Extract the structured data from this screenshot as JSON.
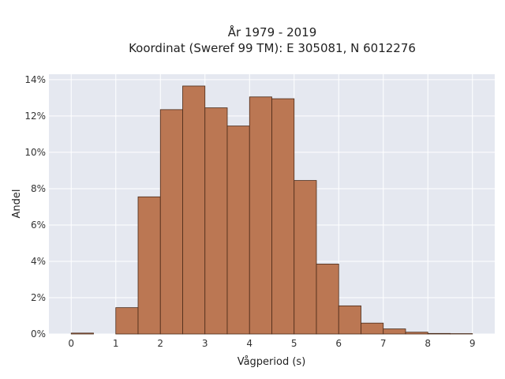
{
  "chart_data": {
    "type": "bar",
    "title_line1": "År 1979 - 2019",
    "title_line2": "Koordinat (Sweref 99 TM): E 305081, N 6012276",
    "xlabel": "Vågperiod (s)",
    "ylabel": "Andel",
    "xlim": [
      -0.5,
      9.5
    ],
    "ylim": [
      0,
      14.3
    ],
    "x_ticks": [
      0,
      1,
      2,
      3,
      4,
      5,
      6,
      7,
      8,
      9
    ],
    "y_ticks": [
      0,
      2,
      4,
      6,
      8,
      10,
      12,
      14
    ],
    "y_tick_labels": [
      "0%",
      "2%",
      "4%",
      "6%",
      "8%",
      "10%",
      "12%",
      "14%"
    ],
    "bin_width": 0.5,
    "bins": [
      {
        "x0": 0.0,
        "value": 0.05
      },
      {
        "x0": 0.5,
        "value": 0.0
      },
      {
        "x0": 1.0,
        "value": 1.45
      },
      {
        "x0": 1.5,
        "value": 7.55
      },
      {
        "x0": 2.0,
        "value": 12.35
      },
      {
        "x0": 2.5,
        "value": 13.65
      },
      {
        "x0": 3.0,
        "value": 12.45
      },
      {
        "x0": 3.5,
        "value": 11.45
      },
      {
        "x0": 4.0,
        "value": 13.05
      },
      {
        "x0": 4.5,
        "value": 12.95
      },
      {
        "x0": 5.0,
        "value": 8.45
      },
      {
        "x0": 5.5,
        "value": 3.85
      },
      {
        "x0": 6.0,
        "value": 1.55
      },
      {
        "x0": 6.5,
        "value": 0.6
      },
      {
        "x0": 7.0,
        "value": 0.28
      },
      {
        "x0": 7.5,
        "value": 0.1
      },
      {
        "x0": 8.0,
        "value": 0.03
      },
      {
        "x0": 8.5,
        "value": 0.02
      }
    ],
    "grid": true,
    "colors": {
      "bar": "#bb7753",
      "bar_edge": "#4a2a18",
      "plot_bg": "#e5e8f0",
      "grid": "#ffffff"
    }
  }
}
